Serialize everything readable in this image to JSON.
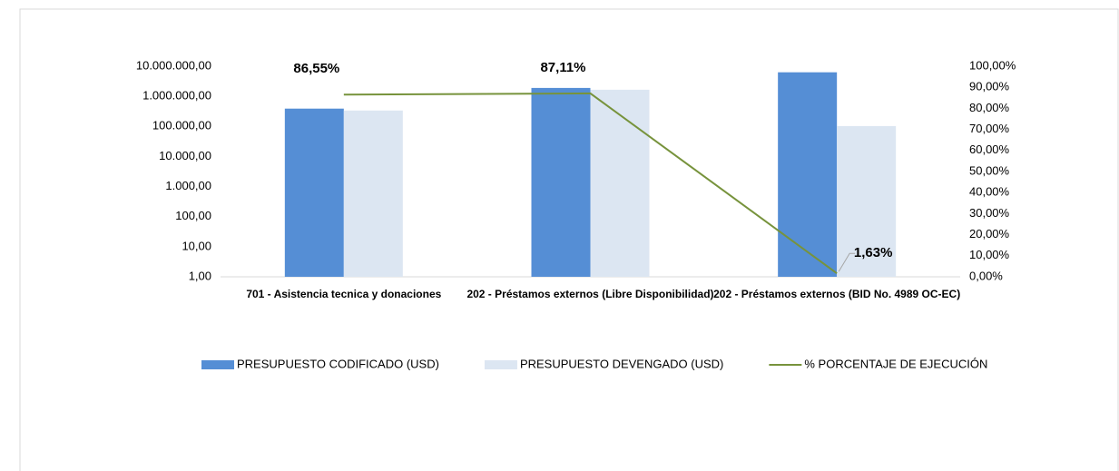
{
  "chart_data": {
    "type": "bar",
    "categories": [
      "701 - Asistencia tecnica y donaciones",
      "202 - Préstamos externos (Libre Disponibilidad)",
      "202 - Préstamos externos (BID No. 4989 OC-EC)"
    ],
    "series": [
      {
        "name": "PRESUPUESTO CODIFICADO (USD)",
        "color": "#558ed5",
        "type": "bar",
        "values": [
          390000,
          1900000,
          6300000
        ]
      },
      {
        "name": "PRESUPUESTO  DEVENGADO (USD)",
        "color": "#dce6f2",
        "type": "bar",
        "values": [
          337545,
          1655090,
          102690
        ]
      },
      {
        "name": "% PORCENTAJE DE EJECUCIÓN",
        "color": "#77933c",
        "type": "line",
        "axis": "y2",
        "values": [
          86.55,
          87.11,
          1.63
        ],
        "value_labels": [
          "86,55%",
          "87,11%",
          "1,63%"
        ]
      }
    ],
    "y_scale": "log",
    "ylim": [
      1,
      10000000
    ],
    "yticks": [
      {
        "value": 1,
        "label": "1,00"
      },
      {
        "value": 10,
        "label": "10,00"
      },
      {
        "value": 100,
        "label": "100,00"
      },
      {
        "value": 1000,
        "label": "1.000,00"
      },
      {
        "value": 10000,
        "label": "10.000,00"
      },
      {
        "value": 100000,
        "label": "100.000,00"
      },
      {
        "value": 1000000,
        "label": "1.000.000,00"
      },
      {
        "value": 10000000,
        "label": "10.000.000,00"
      }
    ],
    "y2lim": [
      0,
      100
    ],
    "y2ticks": [
      {
        "value": 0,
        "label": "0,00%"
      },
      {
        "value": 10,
        "label": "10,00%"
      },
      {
        "value": 20,
        "label": "20,00%"
      },
      {
        "value": 30,
        "label": "30,00%"
      },
      {
        "value": 40,
        "label": "40,00%"
      },
      {
        "value": 50,
        "label": "50,00%"
      },
      {
        "value": 60,
        "label": "60,00%"
      },
      {
        "value": 70,
        "label": "70,00%"
      },
      {
        "value": 80,
        "label": "80,00%"
      },
      {
        "value": 90,
        "label": "90,00%"
      },
      {
        "value": 100,
        "label": "100,00%"
      }
    ],
    "grid": false,
    "legend": "bottom"
  }
}
